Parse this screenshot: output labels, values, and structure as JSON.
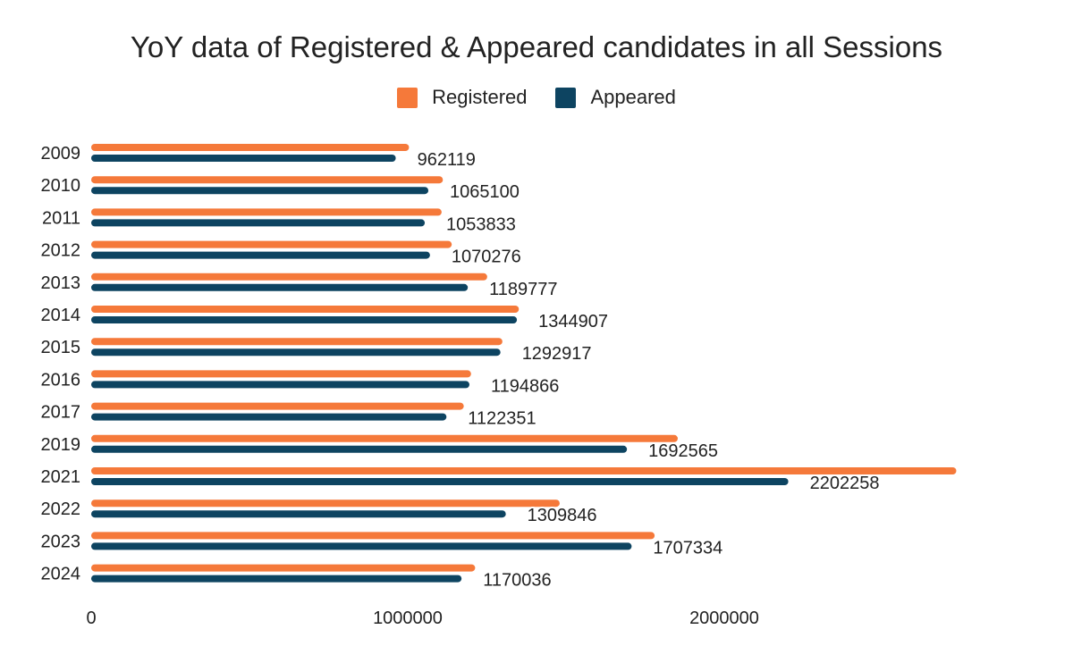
{
  "chart_data": {
    "type": "bar",
    "orientation": "horizontal",
    "title": "YoY data of Registered & Appeared candidates in all Sessions",
    "xlabel": "",
    "ylabel": "",
    "legend_position": "top",
    "grid": false,
    "xlim": [
      0,
      3000000
    ],
    "x_ticks": [
      0,
      1000000,
      2000000
    ],
    "x_tick_labels": [
      "0",
      "1000000",
      "2000000"
    ],
    "categories": [
      "2009",
      "2010",
      "2011",
      "2012",
      "2013",
      "2014",
      "2015",
      "2016",
      "2017",
      "2019",
      "2021",
      "2022",
      "2023",
      "2024"
    ],
    "series": [
      {
        "name": "Registered",
        "color": "#f5793a",
        "values": [
          1004000,
          1111000,
          1107000,
          1139000,
          1251000,
          1351000,
          1299000,
          1200000,
          1177000,
          1853000,
          2733000,
          1480000,
          1780000,
          1213000
        ]
      },
      {
        "name": "Appeared",
        "color": "#0d4461",
        "values": [
          962119,
          1065100,
          1053833,
          1070276,
          1189777,
          1344907,
          1292917,
          1194866,
          1122351,
          1692565,
          2202258,
          1309846,
          1707334,
          1170036
        ],
        "data_labels": [
          "962119",
          "1065100",
          "1053833",
          "1070276",
          "1189777",
          "1344907",
          "1292917",
          "1194866",
          "1122351",
          "1692565",
          "2202258",
          "1309846",
          "1707334",
          "1170036"
        ]
      }
    ]
  }
}
